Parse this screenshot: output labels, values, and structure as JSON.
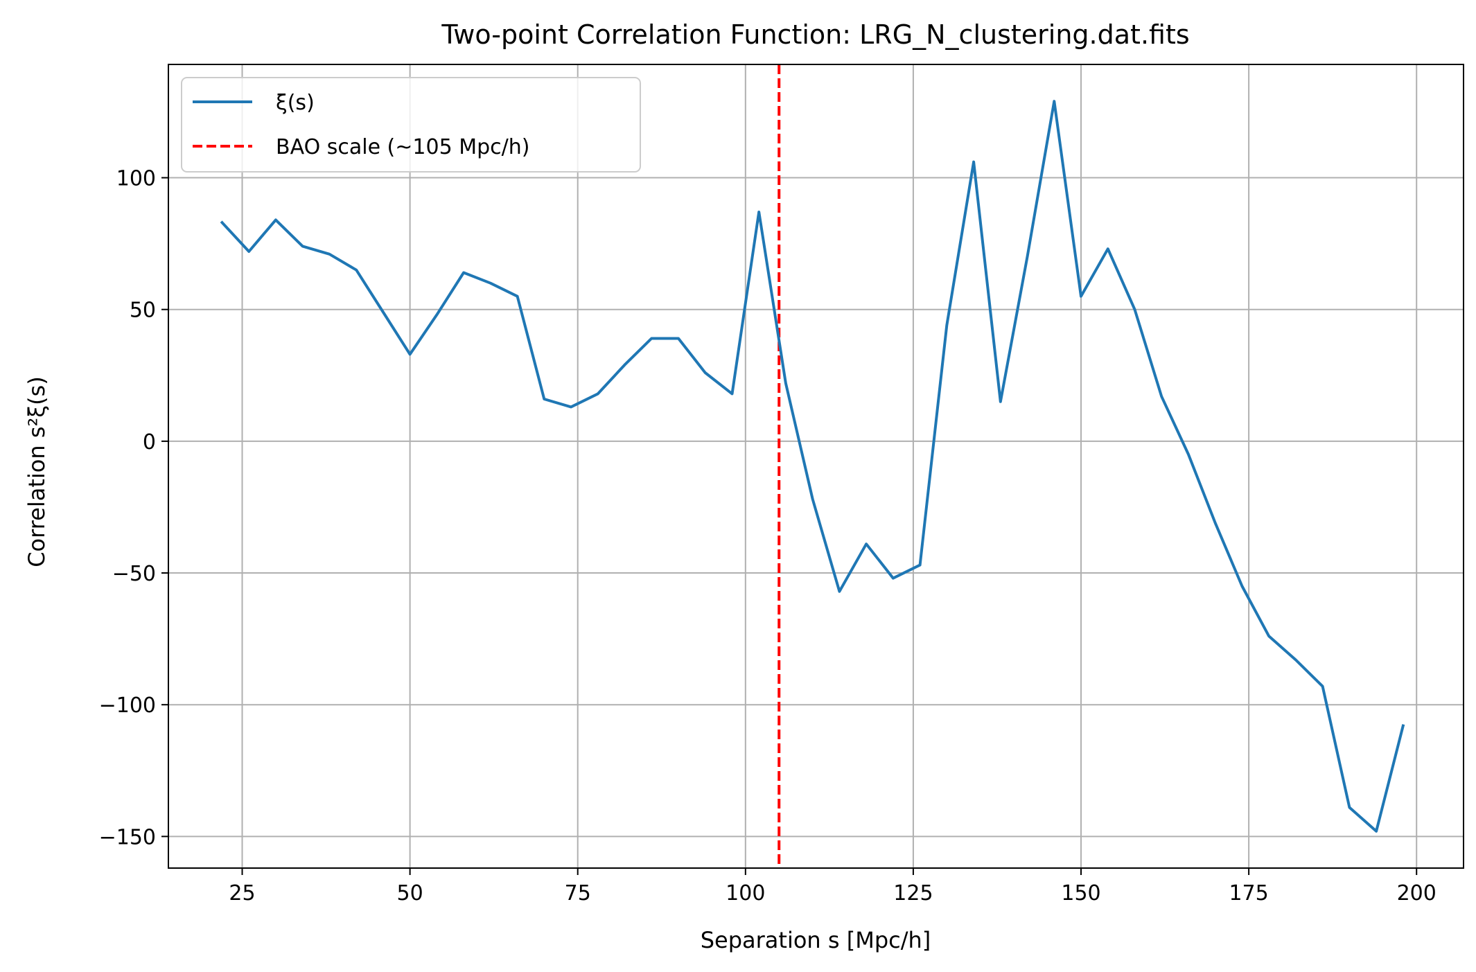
{
  "chart_data": {
    "type": "line",
    "title": "Two-point Correlation Function: LRG_N_clustering.dat.fits",
    "xlabel": "Separation s [Mpc/h]",
    "ylabel": "Correlation s²ξ(s)",
    "xlim": [
      14,
      207
    ],
    "ylim": [
      -162,
      143
    ],
    "xticks": [
      25,
      50,
      75,
      100,
      125,
      150,
      175,
      200
    ],
    "xtick_labels": [
      "25",
      "50",
      "75",
      "100",
      "125",
      "150",
      "175",
      "200"
    ],
    "yticks": [
      -150,
      -100,
      -50,
      0,
      50,
      100
    ],
    "ytick_labels": [
      "−150",
      "−100",
      "−50",
      "0",
      "50",
      "100"
    ],
    "grid": true,
    "legend_placement": "top-left",
    "series": [
      {
        "name": "ξ(s)",
        "color": "#1f77b4",
        "style": "solid",
        "x": [
          22,
          26,
          30,
          34,
          38,
          42,
          46,
          50,
          54,
          58,
          62,
          66,
          70,
          74,
          78,
          82,
          86,
          90,
          94,
          98,
          102,
          106,
          110,
          114,
          118,
          122,
          126,
          130,
          134,
          138,
          142,
          146,
          150,
          154,
          158,
          162,
          166,
          170,
          174,
          178,
          182,
          186,
          190,
          194,
          198
        ],
        "y": [
          83,
          72,
          84,
          74,
          71,
          65,
          49,
          33,
          48,
          64,
          60,
          55,
          16,
          13,
          18,
          29,
          39,
          39,
          26,
          18,
          87,
          22,
          -22,
          -57,
          -39,
          -52,
          -47,
          44,
          106,
          15,
          70,
          129,
          55,
          73,
          50,
          17,
          -5,
          -31,
          -55,
          -74,
          -83,
          -93,
          -139,
          -148,
          -108
        ]
      }
    ],
    "reference_lines": [
      {
        "name": "BAO scale (~105 Mpc/h)",
        "orientation": "vertical",
        "x": 105,
        "color": "#ff0000",
        "style": "dashed"
      }
    ]
  }
}
